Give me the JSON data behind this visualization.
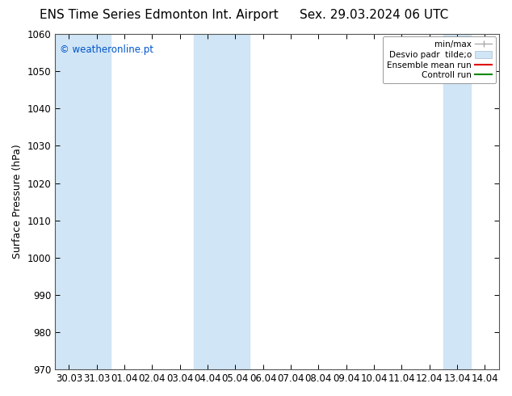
{
  "title_left": "ENS Time Series Edmonton Int. Airport",
  "title_right": "Sex. 29.03.2024 06 UTC",
  "ylabel": "Surface Pressure (hPa)",
  "ylim": [
    970,
    1060
  ],
  "yticks": [
    970,
    980,
    990,
    1000,
    1010,
    1020,
    1030,
    1040,
    1050,
    1060
  ],
  "x_labels": [
    "30.03",
    "31.03",
    "01.04",
    "02.04",
    "03.04",
    "04.04",
    "05.04",
    "06.04",
    "07.04",
    "08.04",
    "09.04",
    "10.04",
    "11.04",
    "12.04",
    "13.04",
    "14.04"
  ],
  "watermark": "© weatheronline.pt",
  "watermark_color": "#0055cc",
  "bg_color": "#ffffff",
  "plot_bg_color": "#ffffff",
  "shaded_band_color": "#d0e5f5",
  "shaded_columns_x": [
    0,
    1,
    5,
    6,
    14
  ],
  "legend_labels": [
    "min/max",
    "Desvio padr  tilde;o",
    "Ensemble mean run",
    "Controll run"
  ],
  "legend_line_colors": [
    "#aaaaaa",
    "#bbccdd",
    "#dd0000",
    "#008800"
  ],
  "title_fontsize": 11,
  "axis_label_fontsize": 9,
  "tick_fontsize": 8.5
}
